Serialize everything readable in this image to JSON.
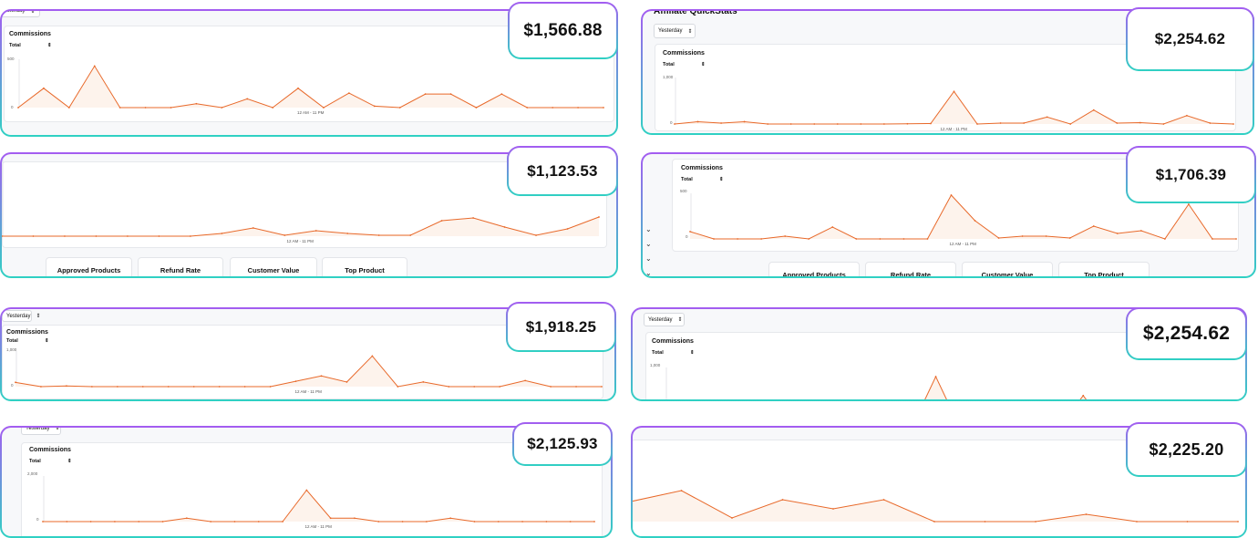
{
  "colors": {
    "line": "#e8692a",
    "fill": "#fdf3ec",
    "frame_top": "#a45cf1",
    "frame_bottom": "#2fd1c3"
  },
  "cards": [
    {
      "value": "$1,566.88",
      "dropdown": "Yesterday",
      "heading": "Commissions",
      "total_label": "Total",
      "y_ticks": [
        "500",
        "0"
      ],
      "x_label": "12 AM - 11 PM",
      "chart": {
        "ymax": 500,
        "values": [
          0,
          200,
          0,
          430,
          0,
          0,
          0,
          40,
          0,
          90,
          0,
          200,
          0,
          150,
          15,
          0,
          140,
          140,
          0,
          140,
          0,
          0,
          0,
          0
        ]
      }
    },
    {
      "value": "$2,254.62",
      "title": "Affiliate QuickStats",
      "dropdown": "Yesterday",
      "heading": "Commissions",
      "total_label": "Total",
      "y_ticks": [
        "1,000",
        "0"
      ],
      "x_label": "12 AM - 11 PM",
      "chart": {
        "ymax": 1000,
        "values": [
          0,
          50,
          20,
          50,
          0,
          0,
          0,
          0,
          0,
          0,
          5,
          10,
          700,
          0,
          20,
          20,
          150,
          0,
          300,
          20,
          30,
          0,
          180,
          20,
          0
        ]
      }
    },
    {
      "value": "$1,123.53",
      "x_label": "12 AM - 11 PM",
      "buttons": [
        "Approved Products",
        "Refund Rate",
        "Customer Value",
        "Top Product"
      ],
      "chart": {
        "ymax": 100,
        "values": [
          0,
          0,
          0,
          0,
          0,
          0,
          0,
          3,
          9,
          1,
          6,
          3,
          1,
          1,
          17,
          20,
          10,
          1,
          8,
          21
        ]
      }
    },
    {
      "value": "$1,706.39",
      "heading": "Commissions",
      "total_label": "Total",
      "y_ticks": [
        "500",
        "0"
      ],
      "x_label": "12 AM - 11 PM",
      "buttons": [
        "Approved Products",
        "Refund Rate",
        "Customer Value",
        "Top Product"
      ],
      "chart": {
        "ymax": 500,
        "values": [
          80,
          0,
          0,
          0,
          30,
          0,
          130,
          0,
          0,
          0,
          0,
          480,
          200,
          10,
          30,
          30,
          10,
          140,
          60,
          90,
          0,
          380,
          0,
          0
        ]
      }
    },
    {
      "value": "$1,918.25",
      "dropdown": "Yesterday",
      "heading": "Commissions",
      "total_label": "Total",
      "y_ticks": [
        "1,000",
        "0"
      ],
      "x_label": "12 AM - 11 PM",
      "chart": {
        "ymax": 1000,
        "values": [
          120,
          0,
          20,
          0,
          0,
          0,
          0,
          0,
          0,
          0,
          0,
          150,
          300,
          130,
          860,
          0,
          130,
          0,
          0,
          0,
          170,
          0,
          0,
          0
        ]
      }
    },
    {
      "value": "$2,254.62",
      "dropdown": "Yesterday",
      "heading": "Commissions",
      "total_label": "Total",
      "y_ticks": [
        "1,000"
      ],
      "chart": {
        "ymax": 1000,
        "values": [
          0,
          0,
          0,
          0,
          0,
          0,
          0,
          0,
          0,
          0,
          0,
          850,
          0,
          0,
          0,
          0,
          0,
          540,
          0,
          0,
          0,
          0,
          0,
          0
        ]
      }
    },
    {
      "value": "$2,125.93",
      "dropdown": "Yesterday",
      "heading": "Commissions",
      "total_label": "Total",
      "y_ticks": [
        "2,000",
        "0"
      ],
      "x_label": "12 AM - 11 PM",
      "chart": {
        "ymax": 2000,
        "values": [
          0,
          0,
          0,
          0,
          0,
          0,
          150,
          0,
          0,
          0,
          0,
          1380,
          150,
          150,
          0,
          0,
          0,
          150,
          0,
          0,
          0,
          0,
          0,
          0
        ]
      }
    },
    {
      "value": "$2,225.20",
      "chart": {
        "ymax": 40,
        "values": [
          22,
          34,
          4,
          24,
          14,
          24,
          0,
          0,
          0,
          8,
          0,
          0,
          0
        ]
      }
    }
  ]
}
